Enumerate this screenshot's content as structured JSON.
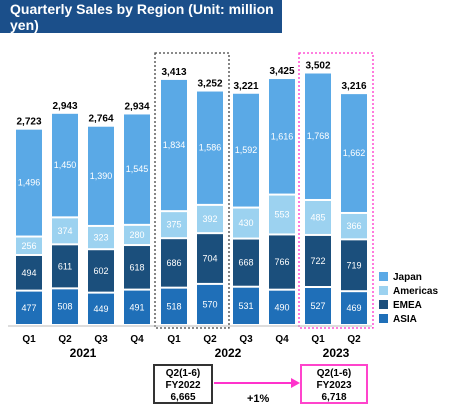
{
  "title": "Quarterly Sales by Region (Unit: million yen)",
  "colors": {
    "japan": "#5aa9e6",
    "americas": "#9cd2f0",
    "emea": "#1b4f7c",
    "asia": "#1f6fb8",
    "title_bg": "#1b4f8a",
    "highlight_dark": "#444444",
    "highlight_pink": "#ff33cc"
  },
  "chart_data": {
    "type": "bar",
    "stacked": true,
    "categories": [
      "Q1",
      "Q2",
      "Q3",
      "Q4",
      "Q1",
      "Q2",
      "Q3",
      "Q4",
      "Q1",
      "Q2"
    ],
    "years": [
      {
        "label": "2021",
        "span": [
          0,
          3
        ]
      },
      {
        "label": "2022",
        "span": [
          4,
          7
        ]
      },
      {
        "label": "2023",
        "span": [
          8,
          9
        ]
      }
    ],
    "series": [
      {
        "name": "ASIA",
        "color_key": "asia",
        "values": [
          477,
          508,
          449,
          491,
          518,
          570,
          531,
          490,
          527,
          469
        ]
      },
      {
        "name": "EMEA",
        "color_key": "emea",
        "values": [
          494,
          611,
          602,
          618,
          686,
          704,
          668,
          766,
          722,
          719
        ]
      },
      {
        "name": "Americas",
        "color_key": "americas",
        "values": [
          256,
          374,
          323,
          280,
          375,
          392,
          430,
          553,
          485,
          366
        ]
      },
      {
        "name": "Japan",
        "color_key": "japan",
        "values": [
          1496,
          1450,
          1390,
          1545,
          1834,
          1586,
          1592,
          1616,
          1768,
          1662
        ]
      }
    ],
    "totals": [
      "2,723",
      "2,943",
      "2,764",
      "2,934",
      "3,413",
      "3,252",
      "3,221",
      "3,425",
      "3,502",
      "3,216"
    ],
    "legend_order": [
      "Japan",
      "Americas",
      "EMEA",
      "ASIA"
    ],
    "legend_position": "right",
    "highlights": [
      {
        "span": [
          4,
          5
        ],
        "style": "dotted",
        "color_key": "highlight_dark"
      },
      {
        "span": [
          8,
          9
        ],
        "style": "dotted",
        "color_key": "highlight_pink"
      }
    ],
    "ylim": [
      0,
      3600
    ]
  },
  "comparison": {
    "left": {
      "line1": "Q2(1-6)",
      "line2": "FY2022",
      "line3": "6,665"
    },
    "right": {
      "line1": "Q2(1-6)",
      "line2": "FY2023",
      "line3": "6,718"
    },
    "growth": "+1%"
  }
}
